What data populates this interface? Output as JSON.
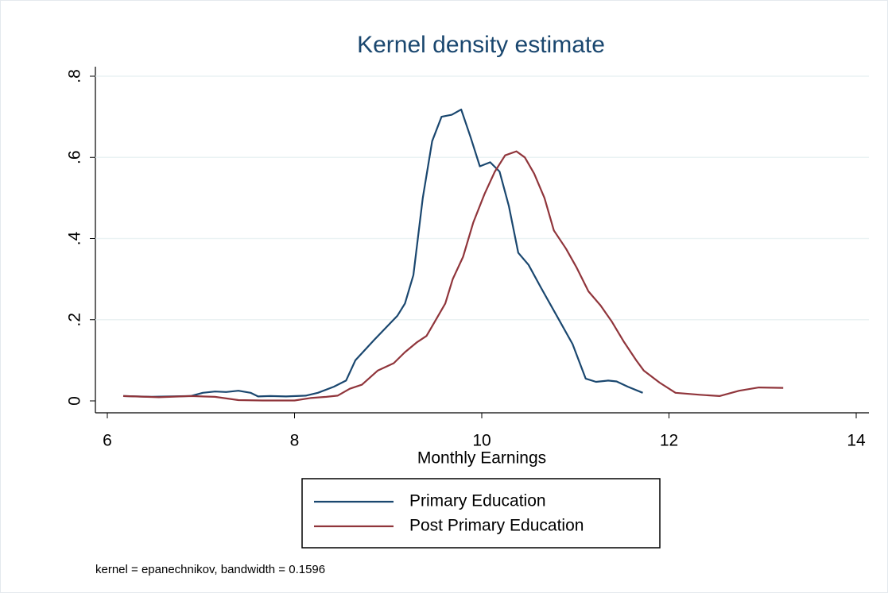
{
  "chart_data": {
    "type": "line",
    "title": "Kernel density estimate",
    "x_label": "Monthly Earnings",
    "note": "kernel = epanechnikov, bandwidth = 0.1596",
    "xlim": [
      6,
      14
    ],
    "xticks": [
      6,
      8,
      10,
      12,
      14
    ],
    "ylim": [
      0,
      0.8
    ],
    "yticks": [
      0,
      {
        "value": 0.2,
        "label": ".2"
      },
      {
        "value": 0.4,
        "label": ".4"
      },
      {
        "value": 0.6,
        "label": ".6"
      },
      {
        "value": 0.8,
        "label": ".8"
      }
    ],
    "grid": true,
    "series": [
      {
        "name": "Primary Education",
        "color": "#1a476f",
        "x": [
          6.17,
          6.47,
          6.89,
          7.02,
          7.15,
          7.27,
          7.4,
          7.53,
          7.61,
          7.74,
          7.91,
          8.12,
          8.25,
          8.42,
          8.55,
          8.65,
          8.85,
          9.1,
          9.18,
          9.27,
          9.37,
          9.47,
          9.57,
          9.68,
          9.78,
          9.88,
          9.98,
          10.09,
          10.19,
          10.29,
          10.39,
          10.5,
          10.63,
          10.8,
          10.97,
          11.11,
          11.22,
          11.35,
          11.44,
          11.56,
          11.72
        ],
        "values": [
          0.012,
          0.01,
          0.012,
          0.02,
          0.023,
          0.022,
          0.025,
          0.02,
          0.011,
          0.012,
          0.011,
          0.013,
          0.02,
          0.035,
          0.05,
          0.1,
          0.15,
          0.21,
          0.24,
          0.31,
          0.5,
          0.64,
          0.7,
          0.705,
          0.718,
          0.65,
          0.578,
          0.588,
          0.565,
          0.48,
          0.365,
          0.335,
          0.28,
          0.21,
          0.14,
          0.055,
          0.047,
          0.05,
          0.048,
          0.035,
          0.02
        ]
      },
      {
        "name": "Post Primary Education",
        "color": "#90353b",
        "x": [
          6.17,
          6.55,
          6.89,
          7.15,
          7.4,
          7.66,
          8.0,
          8.17,
          8.34,
          8.46,
          8.59,
          8.72,
          8.89,
          9.06,
          9.18,
          9.31,
          9.41,
          9.51,
          9.61,
          9.69,
          9.8,
          9.91,
          10.03,
          10.14,
          10.25,
          10.37,
          10.46,
          10.56,
          10.67,
          10.77,
          10.9,
          11.01,
          11.14,
          11.27,
          11.39,
          11.52,
          11.65,
          11.73,
          11.9,
          12.07,
          12.33,
          12.54,
          12.75,
          12.96,
          13.22
        ],
        "values": [
          0.012,
          0.009,
          0.012,
          0.01,
          0.002,
          0.001,
          0.001,
          0.007,
          0.01,
          0.013,
          0.03,
          0.04,
          0.075,
          0.093,
          0.12,
          0.145,
          0.16,
          0.2,
          0.24,
          0.3,
          0.355,
          0.44,
          0.51,
          0.565,
          0.605,
          0.615,
          0.6,
          0.56,
          0.5,
          0.42,
          0.375,
          0.33,
          0.27,
          0.235,
          0.195,
          0.145,
          0.1,
          0.075,
          0.045,
          0.02,
          0.015,
          0.012,
          0.025,
          0.033,
          0.032
        ]
      }
    ]
  }
}
